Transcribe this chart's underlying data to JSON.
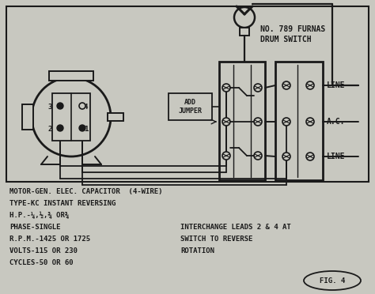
{
  "bg_color": "#c8c8c0",
  "line_color": "#1a1a1a",
  "title_label": "NO. 789 FURNAS\nDRUM SWITCH",
  "line_label1": "LINE",
  "line_label2": "A.C.",
  "line_label3": "LINE",
  "add_jumper": "ADD\nJUMPER",
  "fig_label": "FIG. 4",
  "bottom_text_left": [
    "MOTOR-GEN. ELEC. CAPACITOR  (4-WIRE)",
    "TYPE-KC INSTANT REVERSING",
    "H.P.-¼,½,¾ OR¾",
    "PHASE-SINGLE",
    "R.P.M.-1425 OR 1725",
    "VOLTS-115 OR 230",
    "CYCLES-50 OR 60"
  ],
  "bottom_text_right": [
    "INTERCHANGE LEADS 2 & 4 AT",
    "SWITCH TO REVERSE",
    "ROTATION"
  ],
  "font_size_small": 6.5,
  "font_size_medium": 7.5
}
